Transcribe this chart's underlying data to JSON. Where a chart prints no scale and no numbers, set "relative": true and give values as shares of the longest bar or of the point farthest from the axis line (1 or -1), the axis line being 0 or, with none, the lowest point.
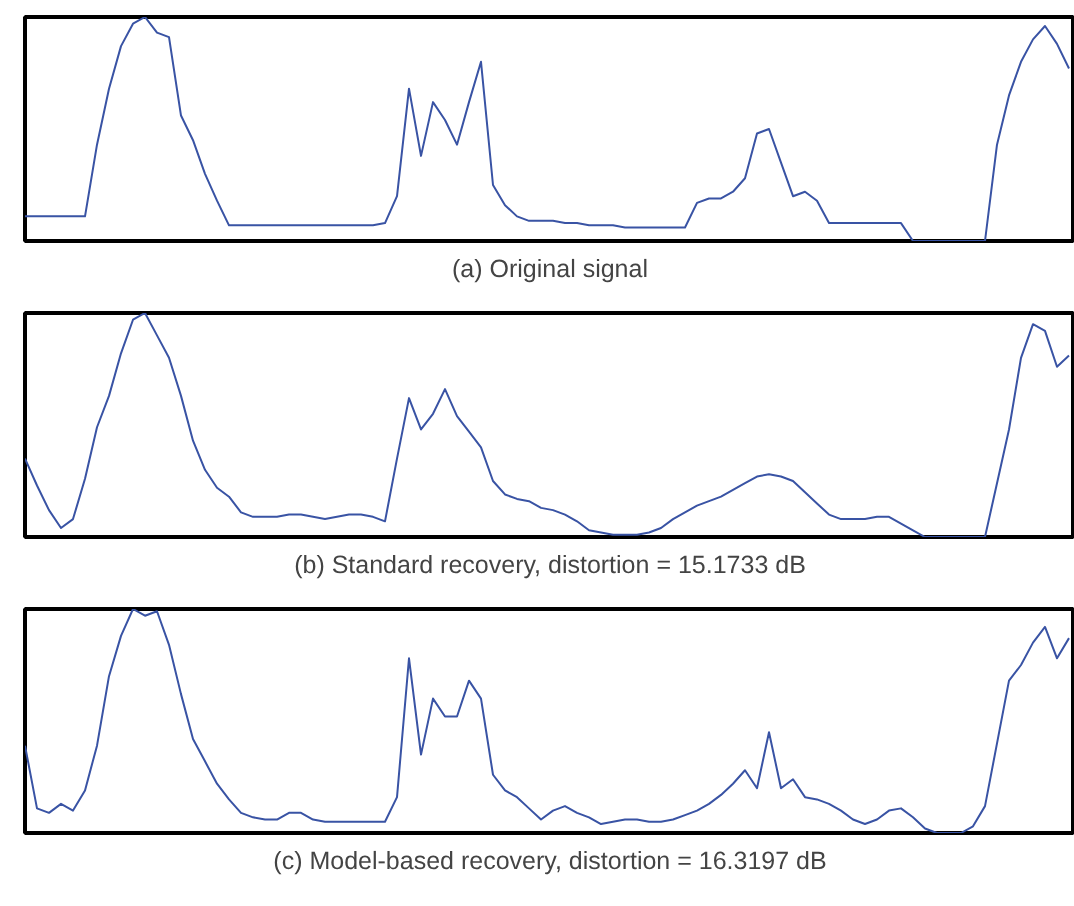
{
  "chart_data": [
    {
      "type": "line",
      "title": "(a) Original signal",
      "relative": true,
      "categories": [
        null,
        null,
        null,
        null,
        null,
        null,
        null,
        null,
        null,
        null,
        null,
        null,
        null,
        null,
        null,
        null,
        null,
        null,
        null,
        null,
        null,
        null,
        null,
        null,
        null,
        null,
        null,
        null,
        null,
        null,
        null,
        null,
        null,
        null,
        null,
        null,
        null,
        null,
        null,
        null,
        null,
        null,
        null,
        null,
        null,
        null,
        null,
        null,
        null,
        null,
        null,
        null,
        null,
        null,
        null,
        null,
        null,
        null,
        null,
        null,
        null,
        null,
        null,
        null,
        null,
        null,
        null,
        null,
        null,
        null,
        null,
        null,
        null,
        null,
        null,
        null,
        null,
        null,
        null,
        null,
        null,
        null,
        null,
        null,
        null,
        null,
        null,
        null
      ],
      "series": [
        {
          "color": "#3953a4",
          "values": [
            0.11,
            0.11,
            0.11,
            0.11,
            0.11,
            0.11,
            0.43,
            0.68,
            0.87,
            0.97,
            1,
            0.93,
            0.91,
            0.56,
            0.45,
            0.3,
            0.18,
            0.07,
            0.07,
            0.07,
            0.07,
            0.07,
            0.07,
            0.07,
            0.07,
            0.07,
            0.07,
            0.07,
            0.07,
            0.07,
            0.08,
            0.2,
            0.68,
            0.38,
            0.62,
            0.54,
            0.43,
            0.62,
            0.8,
            0.25,
            0.16,
            0.11,
            0.09,
            0.09,
            0.09,
            0.08,
            0.08,
            0.07,
            0.07,
            0.07,
            0.06,
            0.06,
            0.06,
            0.06,
            0.06,
            0.06,
            0.17,
            0.19,
            0.19,
            0.22,
            0.28,
            0.48,
            0.5,
            0.35,
            0.2,
            0.22,
            0.18,
            0.08,
            0.08,
            0.08,
            0.08,
            0.08,
            0.08,
            0.08,
            0,
            0,
            0,
            0,
            0,
            0,
            0,
            0.43,
            0.65,
            0.8,
            0.9,
            0.96,
            0.88,
            0.77
          ]
        }
      ]
    },
    {
      "type": "line",
      "title": "(b) Standard recovery, distortion = 15.1733 dB",
      "relative": true,
      "categories": [
        null,
        null,
        null,
        null,
        null,
        null,
        null,
        null,
        null,
        null,
        null,
        null,
        null,
        null,
        null,
        null,
        null,
        null,
        null,
        null,
        null,
        null,
        null,
        null,
        null,
        null,
        null,
        null,
        null,
        null,
        null,
        null,
        null,
        null,
        null,
        null,
        null,
        null,
        null,
        null,
        null,
        null,
        null,
        null,
        null,
        null,
        null,
        null,
        null,
        null,
        null,
        null,
        null,
        null,
        null,
        null,
        null,
        null,
        null,
        null,
        null,
        null,
        null,
        null,
        null,
        null,
        null,
        null,
        null,
        null,
        null,
        null,
        null,
        null,
        null,
        null,
        null,
        null,
        null,
        null,
        null,
        null,
        null,
        null,
        null,
        null,
        null,
        null
      ],
      "series": [
        {
          "color": "#3953a4",
          "values": [
            0.35,
            0.23,
            0.12,
            0.04,
            0.08,
            0.26,
            0.49,
            0.63,
            0.82,
            0.97,
            1,
            0.9,
            0.8,
            0.63,
            0.43,
            0.3,
            0.22,
            0.18,
            0.11,
            0.09,
            0.09,
            0.09,
            0.1,
            0.1,
            0.09,
            0.08,
            0.09,
            0.1,
            0.1,
            0.09,
            0.07,
            0.35,
            0.62,
            0.48,
            0.55,
            0.66,
            0.54,
            0.47,
            0.4,
            0.25,
            0.19,
            0.17,
            0.16,
            0.13,
            0.12,
            0.1,
            0.07,
            0.03,
            0.02,
            0.01,
            0.01,
            0.01,
            0.02,
            0.04,
            0.08,
            0.11,
            0.14,
            0.16,
            0.18,
            0.21,
            0.24,
            0.27,
            0.28,
            0.27,
            0.25,
            0.2,
            0.15,
            0.1,
            0.08,
            0.08,
            0.08,
            0.09,
            0.09,
            0.06,
            0.03,
            0,
            0,
            0,
            0,
            0,
            0,
            0.24,
            0.48,
            0.8,
            0.95,
            0.92,
            0.76,
            0.81
          ]
        }
      ]
    },
    {
      "type": "line",
      "title": "(c) Model-based recovery, distortion = 16.3197 dB",
      "relative": true,
      "categories": [
        null,
        null,
        null,
        null,
        null,
        null,
        null,
        null,
        null,
        null,
        null,
        null,
        null,
        null,
        null,
        null,
        null,
        null,
        null,
        null,
        null,
        null,
        null,
        null,
        null,
        null,
        null,
        null,
        null,
        null,
        null,
        null,
        null,
        null,
        null,
        null,
        null,
        null,
        null,
        null,
        null,
        null,
        null,
        null,
        null,
        null,
        null,
        null,
        null,
        null,
        null,
        null,
        null,
        null,
        null,
        null,
        null,
        null,
        null,
        null,
        null,
        null,
        null,
        null,
        null,
        null,
        null,
        null,
        null,
        null,
        null,
        null,
        null,
        null,
        null,
        null,
        null,
        null,
        null,
        null,
        null,
        null,
        null,
        null,
        null,
        null,
        null,
        null
      ],
      "series": [
        {
          "color": "#3953a4",
          "values": [
            0.39,
            0.11,
            0.09,
            0.13,
            0.1,
            0.19,
            0.39,
            0.7,
            0.88,
            1.0,
            0.97,
            0.99,
            0.84,
            0.62,
            0.42,
            0.32,
            0.22,
            0.15,
            0.09,
            0.07,
            0.06,
            0.06,
            0.09,
            0.09,
            0.06,
            0.05,
            0.05,
            0.05,
            0.05,
            0.05,
            0.05,
            0.16,
            0.78,
            0.35,
            0.6,
            0.52,
            0.52,
            0.68,
            0.6,
            0.26,
            0.19,
            0.16,
            0.11,
            0.06,
            0.1,
            0.12,
            0.09,
            0.07,
            0.04,
            0.05,
            0.06,
            0.06,
            0.05,
            0.05,
            0.06,
            0.08,
            0.1,
            0.13,
            0.17,
            0.22,
            0.28,
            0.2,
            0.45,
            0.2,
            0.24,
            0.16,
            0.15,
            0.13,
            0.1,
            0.06,
            0.04,
            0.06,
            0.1,
            0.11,
            0.07,
            0.02,
            0,
            0,
            0,
            0.03,
            0.12,
            0.4,
            0.68,
            0.75,
            0.85,
            0.92,
            0.78,
            0.87
          ]
        }
      ]
    }
  ]
}
